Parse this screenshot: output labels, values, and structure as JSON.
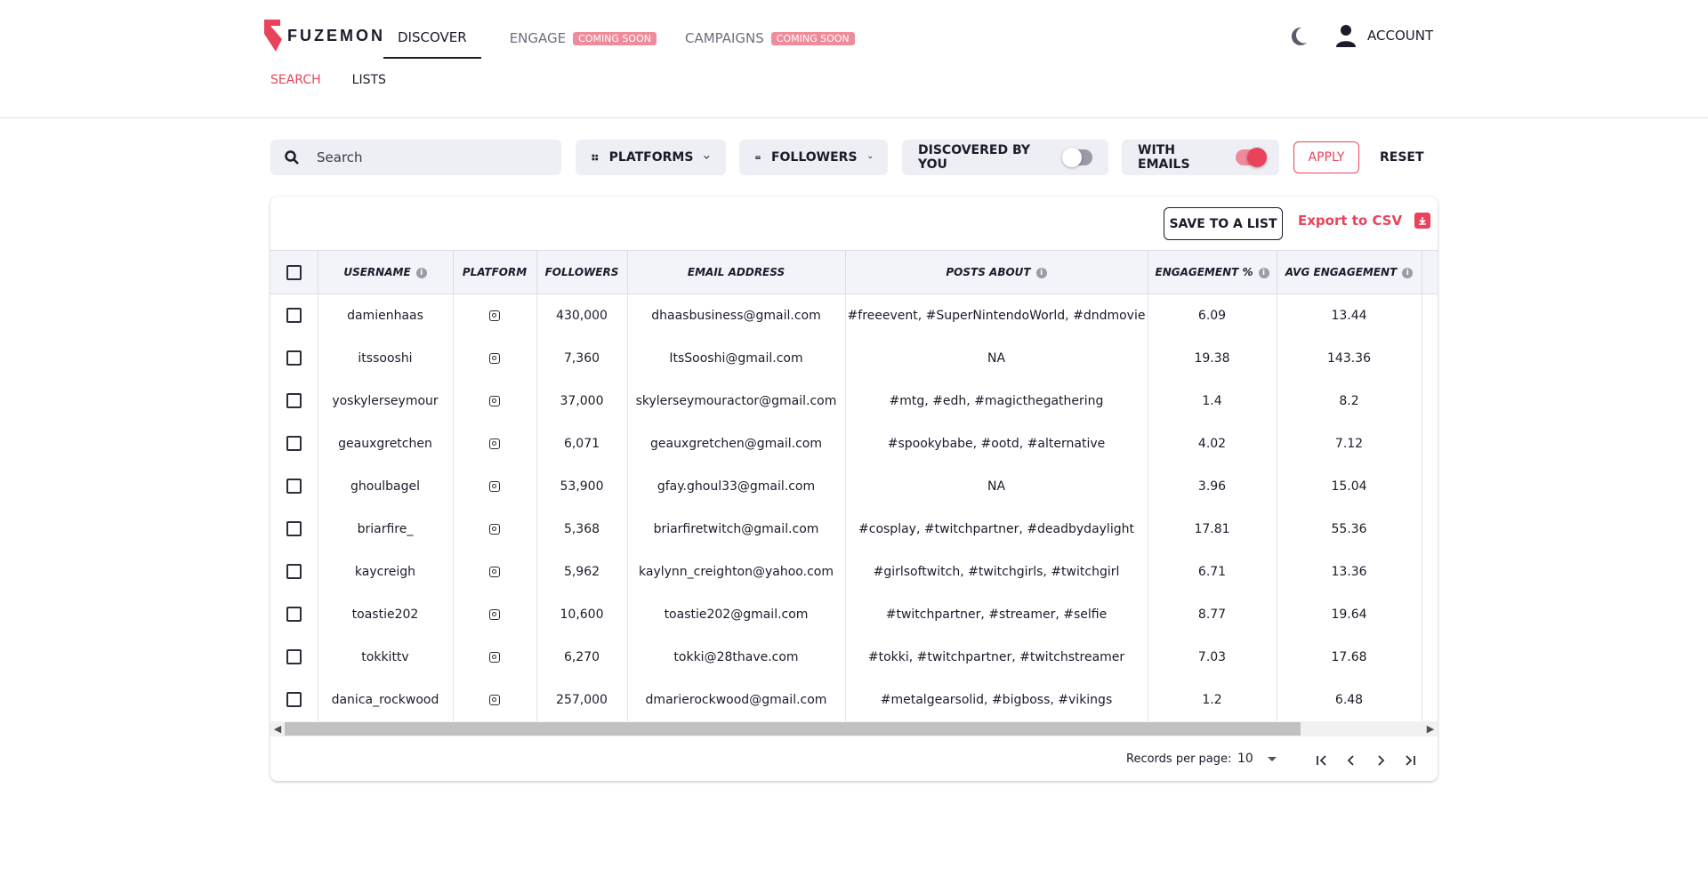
{
  "brand": {
    "name": "FUZEMON",
    "accent": "#e8435a"
  },
  "nav": {
    "items": [
      {
        "label": "DISCOVER"
      },
      {
        "label": "ENGAGE",
        "badge": "COMING SOON"
      },
      {
        "label": "CAMPAIGNS",
        "badge": "COMING SOON"
      }
    ],
    "account_label": "ACCOUNT"
  },
  "subnav": {
    "search": "SEARCH",
    "lists": "LISTS"
  },
  "filters": {
    "search_placeholder": "Search",
    "platforms": "PLATFORMS",
    "followers": "FOLLOWERS",
    "discovered_by_you": "DISCOVERED BY YOU",
    "with_emails": "WITH EMAILS",
    "apply": "APPLY",
    "reset": "RESET"
  },
  "actions": {
    "save_to_list": "SAVE TO A LIST",
    "export_csv": "Export to CSV"
  },
  "table": {
    "headers": {
      "username": "USERNAME",
      "platform": "PLATFORM",
      "followers": "FOLLOWERS",
      "email": "EMAIL ADDRESS",
      "posts_about": "POSTS ABOUT",
      "engagement_pct": "ENGAGEMENT %",
      "avg_engagement": "AVG ENGAGEMENT"
    },
    "rows": [
      {
        "username": "damienhaas",
        "followers": "430,000",
        "email": "dhaasbusiness@gmail.com",
        "posts_about": "#freeevent, #SuperNintendoWorld, #dndmovie",
        "engagement_pct": "6.09",
        "avg_engagement": "13.44"
      },
      {
        "username": "itssooshi",
        "followers": "7,360",
        "email": "ItsSooshi@gmail.com",
        "posts_about": "NA",
        "engagement_pct": "19.38",
        "avg_engagement": "143.36"
      },
      {
        "username": "yoskylerseymour",
        "followers": "37,000",
        "email": "skylerseymouractor@gmail.com",
        "posts_about": "#mtg, #edh, #magicthegathering",
        "engagement_pct": "1.4",
        "avg_engagement": "8.2"
      },
      {
        "username": "geauxgretchen",
        "followers": "6,071",
        "email": "geauxgretchen@gmail.com",
        "posts_about": "#spookybabe, #ootd, #alternative",
        "engagement_pct": "4.02",
        "avg_engagement": "7.12"
      },
      {
        "username": "ghoulbagel",
        "followers": "53,900",
        "email": "gfay.ghoul33@gmail.com",
        "posts_about": "NA",
        "engagement_pct": "3.96",
        "avg_engagement": "15.04"
      },
      {
        "username": "briarfire_",
        "followers": "5,368",
        "email": "briarfiretwitch@gmail.com",
        "posts_about": "#cosplay, #twitchpartner, #deadbydaylight",
        "engagement_pct": "17.81",
        "avg_engagement": "55.36"
      },
      {
        "username": "kaycreigh",
        "followers": "5,962",
        "email": "kaylynn_creighton@yahoo.com",
        "posts_about": "#girlsoftwitch, #twitchgirls, #twitchgirl",
        "engagement_pct": "6.71",
        "avg_engagement": "13.36"
      },
      {
        "username": "toastie202",
        "followers": "10,600",
        "email": "toastie202@gmail.com",
        "posts_about": "#twitchpartner, #streamer, #selfie",
        "engagement_pct": "8.77",
        "avg_engagement": "19.64"
      },
      {
        "username": "tokkittv",
        "followers": "6,270",
        "email": "tokki@28thave.com",
        "posts_about": "#tokki, #twitchpartner, #twitchstreamer",
        "engagement_pct": "7.03",
        "avg_engagement": "17.68"
      },
      {
        "username": "danica_rockwood",
        "followers": "257,000",
        "email": "dmarierockwood@gmail.com",
        "posts_about": "#metalgearsolid, #bigboss, #vikings",
        "engagement_pct": "1.2",
        "avg_engagement": "6.48"
      }
    ]
  },
  "pagination": {
    "records_label": "Records per page:",
    "per_page": "10"
  }
}
